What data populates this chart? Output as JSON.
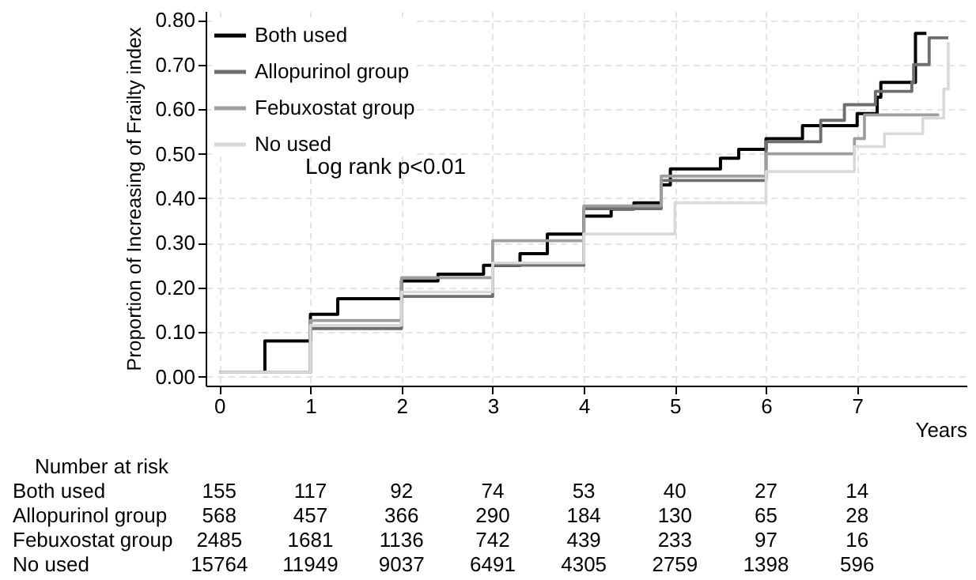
{
  "chart_data": {
    "type": "step",
    "xlabel": "Years",
    "ylabel": "Proportion of Increasing of Frailty index",
    "xlim": [
      -0.15,
      8.2
    ],
    "ylim": [
      -0.02,
      0.82
    ],
    "xticks": [
      0,
      1,
      2,
      3,
      4,
      5,
      6,
      7
    ],
    "yticks": [
      {
        "value": 0,
        "label": "0.00"
      },
      {
        "value": 0.1,
        "label": "0.10"
      },
      {
        "value": 0.2,
        "label": "0.20"
      },
      {
        "value": 0.3,
        "label": "0.30"
      },
      {
        "value": 0.4,
        "label": "0.40"
      },
      {
        "value": 0.5,
        "label": "0.50"
      },
      {
        "value": 0.6,
        "label": "0.60"
      },
      {
        "value": 0.7,
        "label": "0.70"
      },
      {
        "value": 0.8,
        "label": "0.80"
      }
    ],
    "grid": true,
    "legend": "top left",
    "line_style": "solid",
    "series": [
      {
        "name": "Both used",
        "color": "#000000",
        "x": [
          0,
          0.5,
          1,
          1.3,
          2,
          2.4,
          2.9,
          3.3,
          3.6,
          4,
          4.3,
          4.55,
          4.85,
          4.95,
          5.5,
          5.7,
          6,
          6.4,
          7,
          7.22,
          7.26,
          7.64,
          7.76
        ],
        "values": [
          0.01,
          0.08,
          0.14,
          0.175,
          0.215,
          0.23,
          0.25,
          0.276,
          0.32,
          0.36,
          0.376,
          0.39,
          0.43,
          0.466,
          0.49,
          0.51,
          0.534,
          0.563,
          0.59,
          0.627,
          0.66,
          0.77,
          0.77
        ]
      },
      {
        "name": "Allopurinol group",
        "color": "#6e6e6e",
        "x": [
          0,
          1,
          2,
          3,
          4,
          4.85,
          6,
          6.6,
          6.86,
          7.2,
          7.6,
          7.62,
          7.79,
          8
        ],
        "values": [
          0.01,
          0.108,
          0.18,
          0.25,
          0.377,
          0.44,
          0.527,
          0.575,
          0.61,
          0.64,
          0.66,
          0.7,
          0.76,
          0.76
        ]
      },
      {
        "name": "Febuxostat group",
        "color": "#9e9e9e",
        "x": [
          0,
          1,
          2,
          3,
          4,
          4.85,
          6,
          6.97,
          7.08,
          7.9
        ],
        "values": [
          0.01,
          0.126,
          0.222,
          0.305,
          0.383,
          0.45,
          0.5,
          0.534,
          0.587,
          0.587
        ]
      },
      {
        "name": "No used",
        "color": "#d9d9d9",
        "x": [
          0,
          1,
          2,
          3,
          4,
          5,
          6,
          6.97,
          7.3,
          7.72,
          7.95,
          8
        ],
        "values": [
          0.01,
          0.115,
          0.19,
          0.255,
          0.32,
          0.39,
          0.46,
          0.516,
          0.545,
          0.58,
          0.645,
          0.75
        ]
      }
    ],
    "annotations": [
      "Log rank p<0.01",
      "Number at risk",
      "Both used",
      "155",
      "117",
      "92",
      "74",
      "53",
      "40",
      "27",
      "14",
      "Allopurinol group",
      "568",
      "457",
      "366",
      "290",
      "184",
      "130",
      "65",
      "28",
      "Febuxostat group",
      "2485",
      "1681",
      "1136",
      "742",
      "439",
      "233",
      "97",
      "16",
      "No used",
      "15764",
      "11949",
      "9037",
      "6491",
      "4305",
      "2759",
      "1398",
      "596"
    ]
  }
}
